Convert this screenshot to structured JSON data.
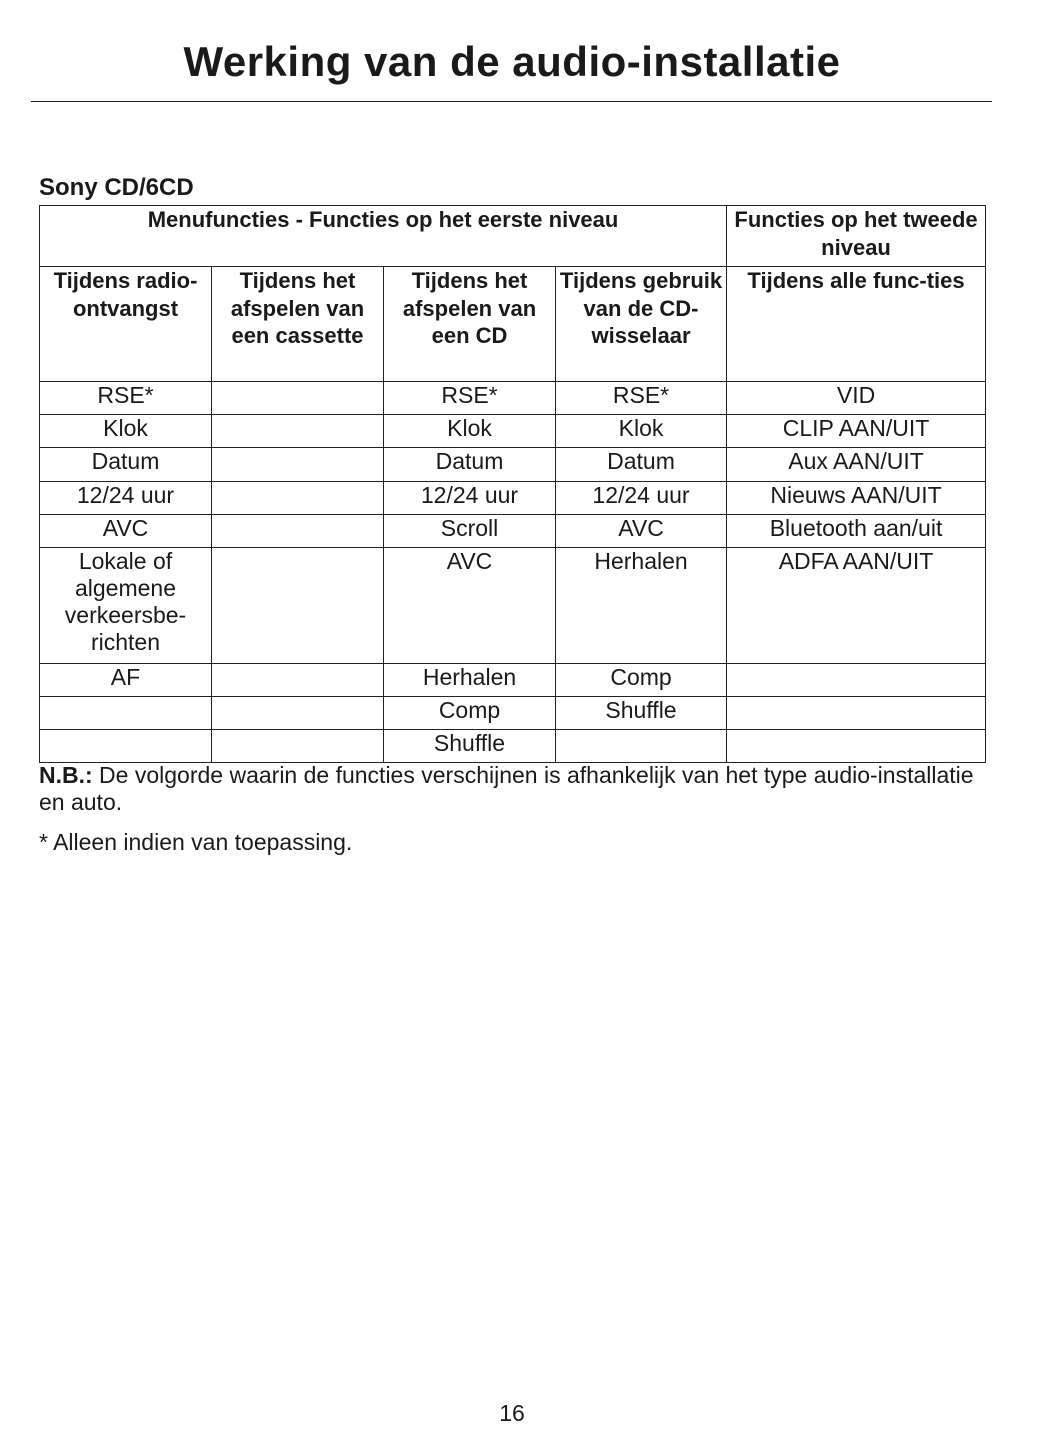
{
  "title": "Werking van de audio-installatie",
  "section": "Sony CD/6CD",
  "table": {
    "header1": [
      "Menufuncties - Functies op het eerste niveau",
      "Functies op het tweede niveau"
    ],
    "header2": [
      "Tijdens radio-ontvangst",
      "Tijdens het afspelen van een cassette",
      "Tijdens het afspelen van een CD",
      "Tijdens gebruik van de CD-wisselaar",
      "Tijdens alle func-ties"
    ],
    "rows": [
      [
        "RSE*",
        "",
        "RSE*",
        "RSE*",
        "VID"
      ],
      [
        "Klok",
        "",
        "Klok",
        "Klok",
        "CLIP AAN/UIT"
      ],
      [
        "Datum",
        "",
        "Datum",
        "Datum",
        "Aux AAN/UIT"
      ],
      [
        "12/24 uur",
        "",
        "12/24 uur",
        "12/24 uur",
        "Nieuws AAN/UIT"
      ],
      [
        "AVC",
        "",
        "Scroll",
        "AVC",
        "Bluetooth aan/uit"
      ],
      [
        "Lokale of algemene verkeersbe-richten",
        "",
        "AVC",
        "Herhalen",
        "ADFA AAN/UIT"
      ],
      [
        "AF",
        "",
        "Herhalen",
        "Comp",
        ""
      ],
      [
        "",
        "",
        "Comp",
        "Shuffle",
        ""
      ],
      [
        "",
        "",
        "Shuffle",
        "",
        ""
      ]
    ]
  },
  "note": {
    "label": "N.B.:",
    "text": " De volgorde waarin de functies verschijnen is afhankelijk van het type audio-installatie en auto."
  },
  "footnote": "* Alleen indien van toepassing.",
  "page_number": "16"
}
